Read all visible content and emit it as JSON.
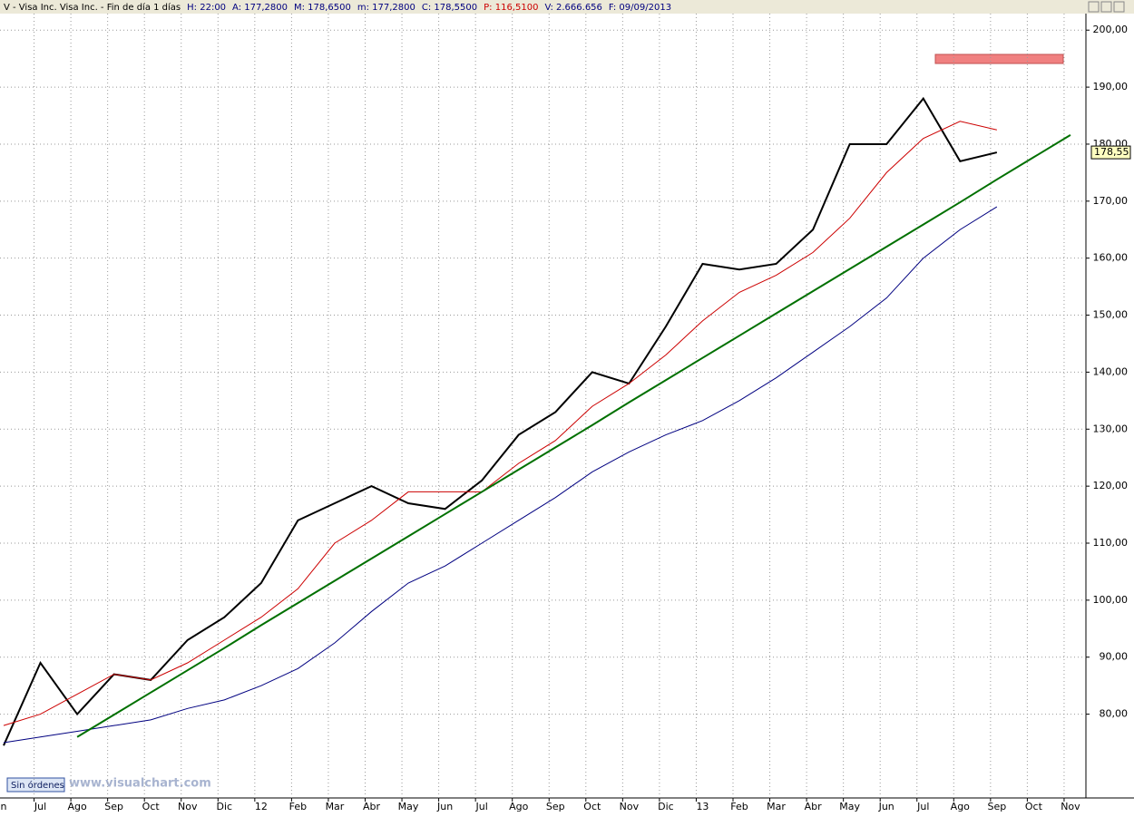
{
  "header": [
    "V - Visa Inc. Visa Inc. - Fin de día 1 días",
    "H: 22:00",
    "A: 177,2800",
    "M: 178,6500",
    "m: 177,2800",
    "C: 178,5500",
    "P: 116,5100",
    "V: 2.666.656",
    "F: 09/09/2013"
  ],
  "footer": {
    "button": "Sin órdenes",
    "watermark": "www.visualchart.com"
  },
  "chart_data": {
    "type": "line",
    "categories": [
      "n",
      "Jul",
      "Ago",
      "Sep",
      "Oct",
      "Nov",
      "Dic",
      "12",
      "Feb",
      "Mar",
      "Abr",
      "May",
      "Jun",
      "Jul",
      "Ago",
      "Sep",
      "Oct",
      "Nov",
      "Dic",
      "13",
      "Feb",
      "Mar",
      "Abr",
      "May",
      "Jun",
      "Jul",
      "Ago",
      "Sep",
      "Oct",
      "Nov"
    ],
    "series": [
      {
        "color": "#000000",
        "values": [
          74.5,
          89,
          80,
          87,
          86,
          93,
          97,
          103,
          114,
          117,
          120,
          117,
          116,
          121,
          129,
          133,
          140,
          138,
          148,
          159,
          158,
          159,
          165,
          180,
          180,
          188,
          177,
          178.55,
          null,
          null
        ]
      },
      {
        "color": "#cc0000",
        "values": [
          78,
          80,
          83.5,
          87,
          86,
          89,
          93,
          97,
          102,
          110,
          114,
          119,
          119,
          119,
          124,
          128,
          134,
          138,
          143,
          149,
          154,
          157,
          161,
          167,
          175,
          181,
          184,
          182.5,
          null,
          null
        ]
      },
      {
        "color": "#000080",
        "values": [
          75,
          76,
          77,
          78,
          79,
          81,
          82.5,
          85,
          88,
          92.5,
          98,
          103,
          106,
          110,
          114,
          118,
          122.5,
          126,
          129,
          131.5,
          135,
          139,
          143.5,
          148,
          153,
          160,
          165,
          169,
          null,
          null
        ]
      },
      {
        "color": "#007000",
        "values": [
          null,
          null,
          76,
          79.9,
          83.8,
          87.7,
          91.6,
          95.6,
          99.5,
          103.4,
          107.3,
          111.2,
          115.1,
          119,
          122.9,
          126.8,
          130.7,
          134.7,
          138.6,
          142.5,
          146.4,
          150.3,
          154.2,
          158.1,
          162,
          165.9,
          169.8,
          173.8,
          177.7,
          181.6
        ]
      }
    ],
    "last_price": {
      "value": 178.55,
      "label": "178,55"
    },
    "ylim": [
      65.3,
      202.9
    ],
    "yticks": [
      {
        "value": 80,
        "label": "80,00"
      },
      {
        "value": 90,
        "label": "90,00"
      },
      {
        "value": 100,
        "label": "100,00"
      },
      {
        "value": 110,
        "label": "110,00"
      },
      {
        "value": 120,
        "label": "120,00"
      },
      {
        "value": 130,
        "label": "130,00"
      },
      {
        "value": 140,
        "label": "140,00"
      },
      {
        "value": 150,
        "label": "150,00"
      },
      {
        "value": 160,
        "label": "160,00"
      },
      {
        "value": 170,
        "label": "170,00"
      },
      {
        "value": 180,
        "label": "180,00"
      },
      {
        "value": 190,
        "label": "190,00"
      },
      {
        "value": 200,
        "label": "200,00"
      }
    ],
    "grid": true
  }
}
